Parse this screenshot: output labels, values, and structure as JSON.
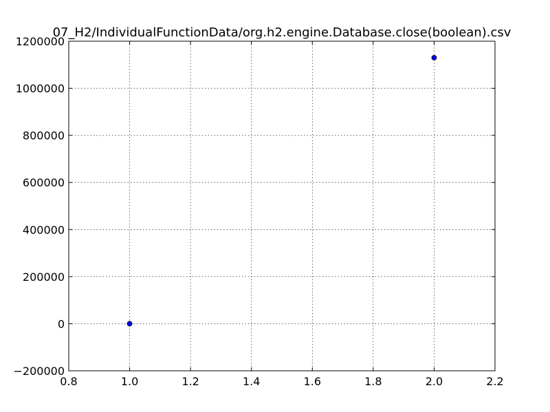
{
  "chart_data": {
    "type": "scatter",
    "title": "07_H2/IndividualFunctionData/org.h2.engine.Database.close(boolean).csv",
    "xlabel": "",
    "ylabel": "",
    "xlim": [
      0.8,
      2.2
    ],
    "ylim": [
      -200000,
      1200000
    ],
    "x_ticks": [
      0.8,
      1.0,
      1.2,
      1.4,
      1.6,
      1.8,
      2.0,
      2.2
    ],
    "x_tick_labels": [
      "0.8",
      "1.0",
      "1.2",
      "1.4",
      "1.6",
      "1.8",
      "2.0",
      "2.2"
    ],
    "y_ticks": [
      -200000,
      0,
      200000,
      400000,
      600000,
      800000,
      1000000,
      1200000
    ],
    "y_tick_labels": [
      "−200000",
      "0",
      "200000",
      "400000",
      "600000",
      "800000",
      "1000000",
      "1200000"
    ],
    "grid": true,
    "series": [
      {
        "x": [
          1.0,
          2.0
        ],
        "y": [
          0,
          1130000
        ],
        "color": "#0000ff"
      }
    ]
  }
}
